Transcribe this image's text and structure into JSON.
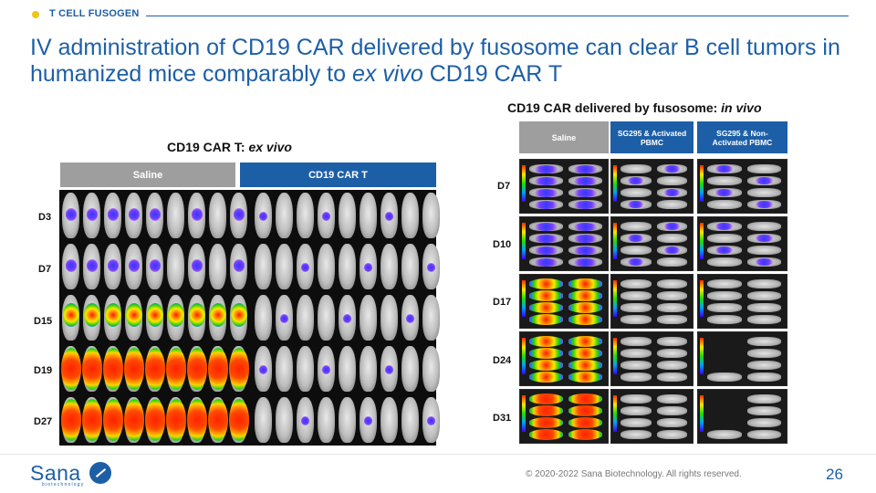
{
  "header": {
    "section_label": "T CELL FUSOGEN",
    "title_part1": "IV administration of CD19 CAR delivered by fusosome can clear B cell tumors in humanized mice comparably to ",
    "title_italic": "ex vivo",
    "title_part2": " CD19 CAR T"
  },
  "left_panel": {
    "heading": "CD19 CAR T: ",
    "heading_italic": "ex vivo",
    "columns": [
      "Saline",
      "CD19 CAR T"
    ],
    "rows": [
      "D3",
      "D7",
      "D15",
      "D19",
      "D27"
    ]
  },
  "right_panel": {
    "heading": "CD19 CAR delivered by fusosome: ",
    "heading_italic": "in vivo",
    "columns": [
      "Saline",
      "SG295 & Activated PBMC",
      "SG295 & Non-Activated PBMC"
    ],
    "rows": [
      "D7",
      "D10",
      "D17",
      "D24",
      "D31"
    ]
  },
  "footer": {
    "logo_text": "Sana",
    "logo_subtext": "biotechnology",
    "copyright": "© 2020-2022 Sana Biotechnology. All rights reserved.",
    "page_number": "26"
  },
  "colors": {
    "brand_blue": "#1d5fa7",
    "accent_yellow": "#f2c318",
    "saline_gray": "#9e9e9e"
  }
}
